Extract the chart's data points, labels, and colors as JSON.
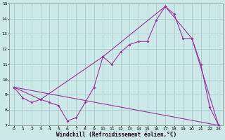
{
  "bg_color": "#cce8e8",
  "line_color": "#993399",
  "grid_color": "#aacccc",
  "xlabel": "Windchill (Refroidissement éolien,°C)",
  "xlim": [
    -0.5,
    23.5
  ],
  "ylim": [
    7,
    15
  ],
  "xticks": [
    0,
    1,
    2,
    3,
    4,
    5,
    6,
    7,
    8,
    9,
    10,
    11,
    12,
    13,
    14,
    15,
    16,
    17,
    18,
    19,
    20,
    21,
    22,
    23
  ],
  "yticks": [
    7,
    8,
    9,
    10,
    11,
    12,
    13,
    14,
    15
  ],
  "line1_x": [
    0,
    1,
    2,
    3,
    4,
    5,
    6,
    7,
    8,
    9,
    10,
    11,
    12,
    13,
    14,
    15,
    16,
    17,
    18,
    19,
    20,
    21,
    22,
    23
  ],
  "line1_y": [
    9.5,
    8.8,
    8.5,
    8.7,
    8.5,
    8.3,
    7.3,
    7.5,
    8.5,
    9.5,
    11.5,
    11.0,
    11.8,
    12.3,
    12.5,
    12.5,
    13.9,
    14.8,
    14.3,
    12.7,
    12.7,
    11.0,
    8.2,
    7.0
  ],
  "line2_x": [
    0,
    3,
    10,
    17,
    20,
    23
  ],
  "line2_y": [
    9.5,
    8.7,
    11.5,
    14.8,
    12.7,
    7.0
  ],
  "line3_x": [
    0,
    23
  ],
  "line3_y": [
    9.5,
    7.0
  ],
  "marker": "D",
  "markersize": 2.0,
  "linewidth": 0.8,
  "tick_fontsize": 4.5,
  "xlabel_fontsize": 5.5
}
